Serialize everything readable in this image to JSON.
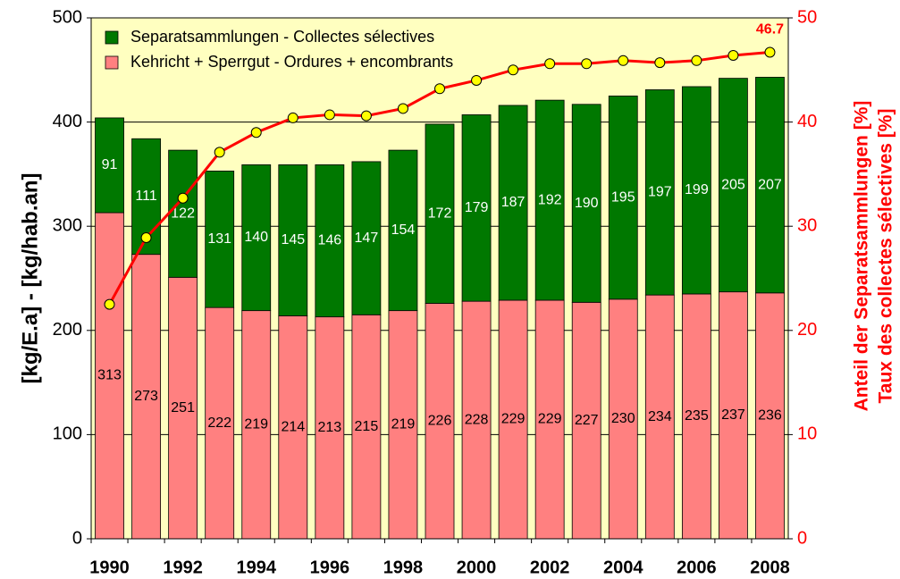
{
  "chart_data": {
    "type": "bar",
    "stacked": true,
    "categories": [
      "1990",
      null,
      "1992",
      null,
      "1994",
      null,
      "1996",
      null,
      "1998",
      null,
      "2000",
      null,
      "2002",
      null,
      "2004",
      null,
      "2006",
      null,
      "2008"
    ],
    "series": [
      {
        "name": "Separatsammlungen - Collectes sélectives",
        "color": "#007800",
        "label_color": "#ffffff",
        "values": [
          91,
          111,
          122,
          131,
          140,
          145,
          146,
          147,
          154,
          172,
          179,
          187,
          192,
          190,
          195,
          197,
          199,
          205,
          207
        ]
      },
      {
        "name": "Kehricht + Sperrgut - Ordures + encombrants",
        "color": "#ff8080",
        "label_color": "#000000",
        "values": [
          313,
          273,
          251,
          222,
          219,
          214,
          213,
          215,
          219,
          226,
          228,
          229,
          229,
          227,
          230,
          234,
          235,
          237,
          236
        ]
      },
      {
        "type": "line",
        "axis": "y2",
        "color": "#ff0000",
        "marker_color": "#ffff00",
        "values": [
          22.5,
          28.9,
          32.7,
          37.1,
          39.0,
          40.4,
          40.7,
          40.6,
          41.3,
          43.2,
          44.0,
          45.0,
          45.6,
          45.6,
          45.9,
          45.7,
          45.9,
          46.4,
          46.7
        ]
      }
    ],
    "ylabel": "[kg/E.a] - [kg/hab.an]",
    "y2label": [
      "Anteil der Separatsammlungen  [%]",
      "Taux des collectes sélectives [%]"
    ],
    "ylim": [
      0,
      500
    ],
    "yticks": [
      0,
      100,
      200,
      300,
      400,
      500
    ],
    "y2lim": [
      0,
      50
    ],
    "y2ticks": [
      0,
      10,
      20,
      30,
      40,
      50
    ],
    "grid": true,
    "legend": "upper left",
    "plot_background": "#ffffc0"
  }
}
